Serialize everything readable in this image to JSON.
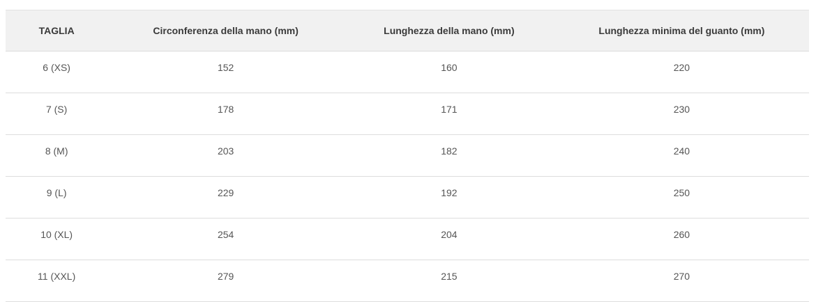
{
  "chart_data": {
    "type": "table",
    "columns": [
      "TAGLIA",
      "Circonferenza della mano (mm)",
      "Lunghezza della mano (mm)",
      "Lunghezza minima del guanto (mm)"
    ],
    "rows": [
      [
        "6 (XS)",
        "152",
        "160",
        "220"
      ],
      [
        "7 (S)",
        "178",
        "171",
        "230"
      ],
      [
        "8 (M)",
        "203",
        "182",
        "240"
      ],
      [
        "9 (L)",
        "229",
        "192",
        "250"
      ],
      [
        "10 (XL)",
        "254",
        "204",
        "260"
      ],
      [
        "11 (XXL)",
        "279",
        "215",
        "270"
      ]
    ],
    "layout_hints": {
      "header_background": "#f1f1f1",
      "header_text_color": "#3a3a3a",
      "cell_text_color": "#555555",
      "row_border_color": "#dddddd",
      "alignment": "center",
      "grid": "horizontal-only"
    }
  }
}
